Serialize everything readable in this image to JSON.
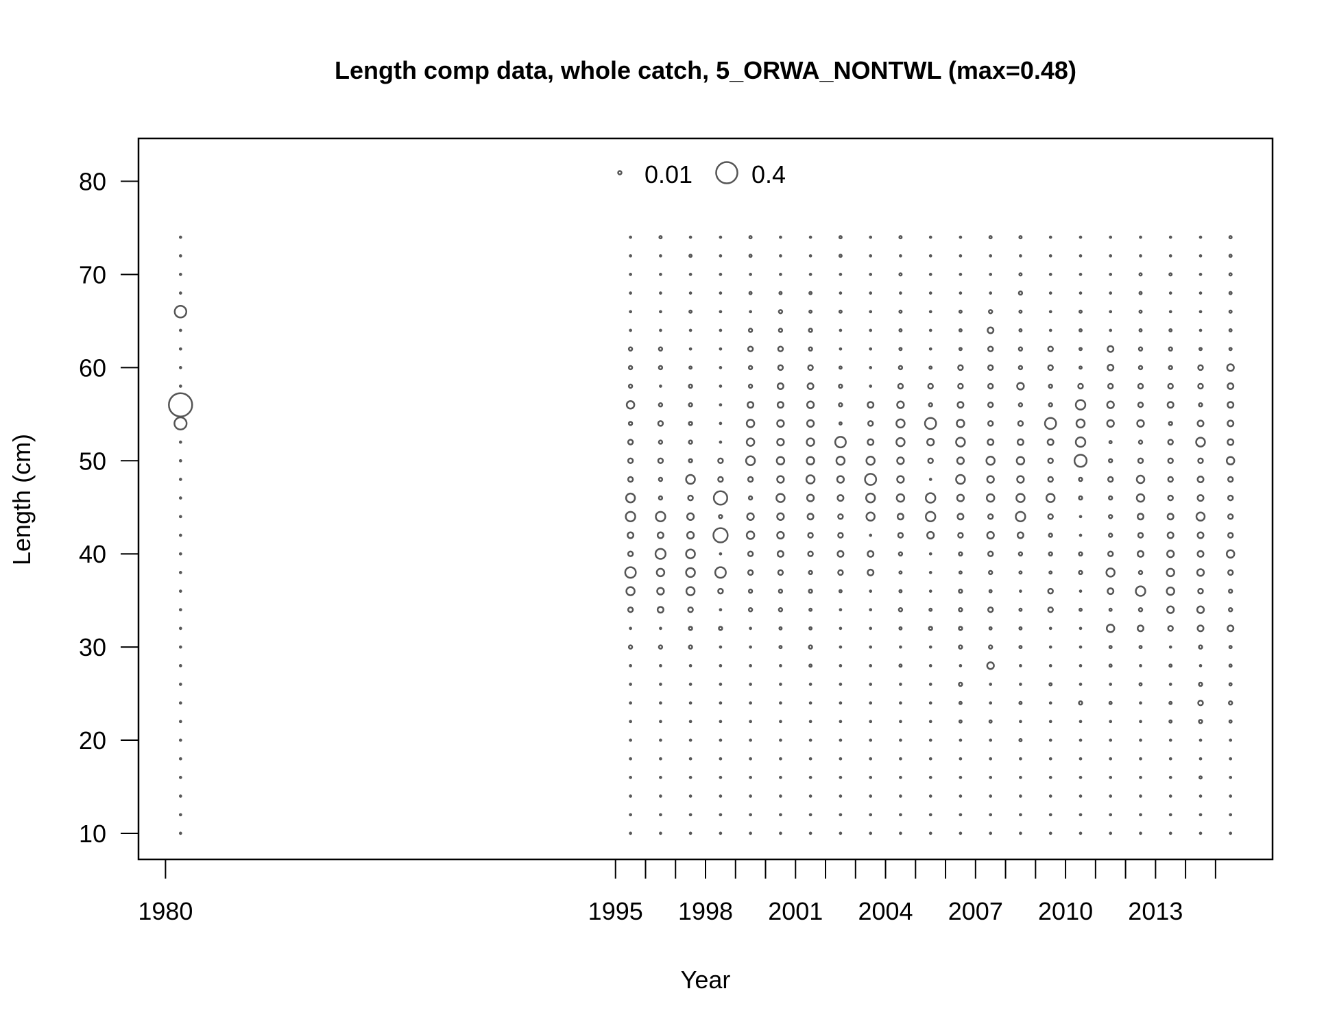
{
  "chart_data": {
    "type": "scatter",
    "subtype": "bubble",
    "title": "Length comp data, whole catch, 5_ORWA_NONTWL (max=0.48)",
    "xlabel": "Year",
    "ylabel": "Length (cm)",
    "xlim": [
      1979.1,
      2016.9
    ],
    "ylim": [
      7.2,
      84.6
    ],
    "x_ticks": [
      1980,
      1995,
      1996,
      1997,
      1998,
      1999,
      2000,
      2001,
      2002,
      2003,
      2004,
      2005,
      2006,
      2007,
      2008,
      2009,
      2010,
      2011,
      2012,
      2013,
      2014,
      2015
    ],
    "x_tick_labels": [
      {
        "value": 1980,
        "label": "1980"
      },
      {
        "value": 1995,
        "label": "1995"
      },
      {
        "value": 1998,
        "label": "1998"
      },
      {
        "value": 2001,
        "label": "2001"
      },
      {
        "value": 2004,
        "label": "2004"
      },
      {
        "value": 2007,
        "label": "2007"
      },
      {
        "value": 2010,
        "label": "2010"
      },
      {
        "value": 2013,
        "label": "2013"
      }
    ],
    "y_ticks": [
      {
        "value": 10,
        "label": "10"
      },
      {
        "value": 20,
        "label": "20"
      },
      {
        "value": 30,
        "label": "30"
      },
      {
        "value": 40,
        "label": "40"
      },
      {
        "value": 50,
        "label": "50"
      },
      {
        "value": 60,
        "label": "60"
      },
      {
        "value": 70,
        "label": "70"
      },
      {
        "value": 80,
        "label": "80"
      }
    ],
    "max_proportion": 0.48,
    "legend": {
      "position": "top-center",
      "entries": [
        {
          "value": 0.01,
          "label": "0.01"
        },
        {
          "value": 0.4,
          "label": "0.4"
        }
      ]
    },
    "bin_min": 10,
    "bin_max": 74,
    "bin_step": 2,
    "bubble_color": "#555555",
    "grid": false,
    "years": [
      {
        "year": 1980.5,
        "props": {
          "66": 0.12,
          "56": 0.48,
          "54": 0.13
        }
      },
      {
        "year": 1995.5,
        "props": {
          "34": 0.02,
          "36": 0.06,
          "38": 0.1,
          "40": 0.02,
          "42": 0.03,
          "44": 0.08,
          "46": 0.07,
          "48": 0.02,
          "50": 0.02,
          "52": 0.02,
          "54": 0.01,
          "56": 0.05,
          "58": 0.01,
          "60": 0.01,
          "62": 0.01,
          "30": 0.01
        }
      },
      {
        "year": 1996.5,
        "props": {
          "30": 0.01,
          "34": 0.03,
          "36": 0.04,
          "38": 0.05,
          "40": 0.09,
          "42": 0.03,
          "44": 0.08,
          "46": 0.01,
          "48": 0.01,
          "50": 0.02,
          "52": 0.01,
          "54": 0.02,
          "56": 0.01,
          "60": 0.01,
          "62": 0.01,
          "74": 0.005
        }
      },
      {
        "year": 1997.5,
        "props": {
          "30": 0.01,
          "32": 0.01,
          "34": 0.02,
          "36": 0.06,
          "38": 0.07,
          "40": 0.07,
          "42": 0.04,
          "44": 0.04,
          "46": 0.02,
          "48": 0.07,
          "50": 0.01,
          "52": 0.01,
          "54": 0.01,
          "56": 0.01,
          "58": 0.01,
          "60": 0.005,
          "66": 0.005,
          "72": 0.005
        }
      },
      {
        "year": 1998.5,
        "props": {
          "32": 0.01,
          "36": 0.02,
          "38": 0.1,
          "42": 0.18,
          "44": 0.01,
          "46": 0.16,
          "48": 0.02,
          "50": 0.02
        }
      },
      {
        "year": 1999.5,
        "props": {
          "34": 0.01,
          "36": 0.01,
          "38": 0.02,
          "40": 0.02,
          "42": 0.05,
          "44": 0.04,
          "46": 0.01,
          "48": 0.02,
          "50": 0.07,
          "52": 0.05,
          "54": 0.05,
          "56": 0.03,
          "58": 0.01,
          "60": 0.01,
          "62": 0.02,
          "64": 0.01,
          "68": 0.005,
          "72": 0.005,
          "74": 0.005
        }
      },
      {
        "year": 2000.5,
        "props": {
          "30": 0.005,
          "32": 0.005,
          "34": 0.01,
          "36": 0.01,
          "38": 0.02,
          "40": 0.03,
          "42": 0.04,
          "44": 0.04,
          "46": 0.06,
          "48": 0.04,
          "50": 0.05,
          "52": 0.04,
          "54": 0.04,
          "56": 0.03,
          "58": 0.03,
          "60": 0.02,
          "62": 0.02,
          "64": 0.01,
          "66": 0.01,
          "68": 0.005
        }
      },
      {
        "year": 2001.5,
        "props": {
          "28": 0.005,
          "30": 0.01,
          "32": 0.005,
          "34": 0.005,
          "36": 0.01,
          "38": 0.01,
          "40": 0.02,
          "42": 0.02,
          "44": 0.03,
          "46": 0.04,
          "48": 0.06,
          "50": 0.05,
          "52": 0.05,
          "54": 0.04,
          "56": 0.04,
          "58": 0.03,
          "60": 0.02,
          "62": 0.01,
          "64": 0.01,
          "66": 0.005,
          "68": 0.005
        }
      },
      {
        "year": 2002.5,
        "props": {
          "36": 0.005,
          "38": 0.02,
          "40": 0.03,
          "42": 0.02,
          "44": 0.02,
          "46": 0.03,
          "48": 0.04,
          "50": 0.06,
          "52": 0.1,
          "54": 0.005,
          "56": 0.01,
          "58": 0.01,
          "60": 0.005,
          "66": 0.005,
          "72": 0.005,
          "74": 0.005
        }
      },
      {
        "year": 2003.5,
        "props": {
          "38": 0.03,
          "40": 0.03,
          "44": 0.06,
          "46": 0.07,
          "48": 0.11,
          "50": 0.06,
          "52": 0.03,
          "54": 0.02,
          "56": 0.03
        }
      },
      {
        "year": 2004.5,
        "props": {
          "28": 0.005,
          "32": 0.005,
          "34": 0.01,
          "36": 0.005,
          "38": 0.005,
          "40": 0.01,
          "42": 0.02,
          "44": 0.03,
          "46": 0.05,
          "48": 0.04,
          "50": 0.04,
          "52": 0.06,
          "54": 0.06,
          "56": 0.04,
          "58": 0.02,
          "60": 0.01,
          "62": 0.005,
          "64": 0.005,
          "66": 0.005,
          "70": 0.005,
          "74": 0.005
        }
      },
      {
        "year": 2005.5,
        "props": {
          "32": 0.01,
          "34": 0.005,
          "42": 0.04,
          "44": 0.08,
          "46": 0.08,
          "50": 0.02,
          "52": 0.04,
          "54": 0.11,
          "56": 0.01,
          "58": 0.02,
          "60": 0.005
        }
      },
      {
        "year": 2006.5,
        "props": {
          "22": 0.005,
          "24": 0.005,
          "26": 0.01,
          "30": 0.01,
          "32": 0.01,
          "34": 0.01,
          "36": 0.01,
          "38": 0.005,
          "40": 0.01,
          "42": 0.02,
          "44": 0.03,
          "46": 0.04,
          "48": 0.07,
          "50": 0.04,
          "52": 0.07,
          "54": 0.05,
          "56": 0.03,
          "58": 0.02,
          "60": 0.02,
          "62": 0.005,
          "64": 0.005,
          "66": 0.005
        }
      },
      {
        "year": 2007.5,
        "props": {
          "22": 0.005,
          "28": 0.04,
          "30": 0.01,
          "32": 0.005,
          "34": 0.02,
          "36": 0.005,
          "38": 0.01,
          "40": 0.02,
          "42": 0.04,
          "44": 0.02,
          "46": 0.05,
          "48": 0.04,
          "50": 0.06,
          "52": 0.03,
          "54": 0.02,
          "56": 0.02,
          "58": 0.02,
          "60": 0.02,
          "62": 0.02,
          "64": 0.03,
          "66": 0.01,
          "74": 0.005
        }
      },
      {
        "year": 2008.5,
        "props": {
          "20": 0.005,
          "24": 0.005,
          "30": 0.005,
          "32": 0.005,
          "34": 0.005,
          "38": 0.005,
          "40": 0.01,
          "42": 0.03,
          "44": 0.08,
          "46": 0.06,
          "48": 0.04,
          "50": 0.05,
          "52": 0.03,
          "54": 0.02,
          "56": 0.01,
          "58": 0.04,
          "60": 0.01,
          "62": 0.01,
          "64": 0.005,
          "66": 0.005,
          "68": 0.01,
          "70": 0.005,
          "74": 0.005
        }
      },
      {
        "year": 2009.5,
        "props": {
          "26": 0.005,
          "34": 0.02,
          "36": 0.02,
          "38": 0.005,
          "40": 0.01,
          "42": 0.01,
          "44": 0.02,
          "46": 0.06,
          "48": 0.02,
          "50": 0.02,
          "52": 0.03,
          "54": 0.11,
          "56": 0.01,
          "58": 0.01,
          "60": 0.02,
          "62": 0.02
        }
      },
      {
        "year": 2010.5,
        "props": {
          "24": 0.01,
          "34": 0.005,
          "38": 0.01,
          "40": 0.01,
          "46": 0.01,
          "48": 0.01,
          "50": 0.13,
          "52": 0.08,
          "54": 0.06,
          "56": 0.08,
          "58": 0.02,
          "60": 0.005,
          "62": 0.005,
          "64": 0.005,
          "66": 0.005
        }
      },
      {
        "year": 2011.5,
        "props": {
          "24": 0.005,
          "28": 0.005,
          "30": 0.005,
          "32": 0.05,
          "34": 0.005,
          "36": 0.03,
          "38": 0.06,
          "40": 0.02,
          "42": 0.01,
          "44": 0.01,
          "46": 0.01,
          "48": 0.02,
          "50": 0.01,
          "52": 0.005,
          "54": 0.04,
          "56": 0.04,
          "58": 0.02,
          "60": 0.03,
          "62": 0.03
        }
      },
      {
        "year": 2012.5,
        "props": {
          "26": 0.005,
          "30": 0.005,
          "32": 0.03,
          "34": 0.01,
          "36": 0.08,
          "38": 0.01,
          "40": 0.03,
          "42": 0.02,
          "44": 0.03,
          "46": 0.05,
          "48": 0.05,
          "50": 0.02,
          "52": 0.01,
          "54": 0.04,
          "56": 0.02,
          "58": 0.02,
          "60": 0.01,
          "62": 0.01,
          "64": 0.005,
          "66": 0.005,
          "68": 0.005,
          "70": 0.005
        }
      },
      {
        "year": 2013.5,
        "props": {
          "22": 0.005,
          "24": 0.005,
          "28": 0.005,
          "32": 0.02,
          "34": 0.04,
          "36": 0.05,
          "38": 0.05,
          "40": 0.04,
          "42": 0.03,
          "44": 0.03,
          "46": 0.02,
          "48": 0.02,
          "50": 0.02,
          "52": 0.02,
          "54": 0.01,
          "56": 0.03,
          "58": 0.02,
          "60": 0.01,
          "62": 0.01,
          "64": 0.005,
          "70": 0.005
        }
      },
      {
        "year": 2014.5,
        "props": {
          "16": 0.005,
          "22": 0.01,
          "24": 0.02,
          "26": 0.01,
          "30": 0.01,
          "32": 0.03,
          "34": 0.04,
          "36": 0.02,
          "38": 0.04,
          "40": 0.03,
          "42": 0.03,
          "44": 0.06,
          "46": 0.03,
          "48": 0.03,
          "50": 0.02,
          "52": 0.07,
          "54": 0.03,
          "56": 0.01,
          "58": 0.02,
          "60": 0.02,
          "62": 0.005
        }
      },
      {
        "year": 2015.5,
        "props": {
          "22": 0.005,
          "24": 0.01,
          "26": 0.005,
          "28": 0.005,
          "30": 0.005,
          "32": 0.03,
          "34": 0.01,
          "36": 0.01,
          "38": 0.02,
          "40": 0.05,
          "42": 0.02,
          "44": 0.02,
          "46": 0.02,
          "48": 0.02,
          "50": 0.05,
          "52": 0.03,
          "54": 0.03,
          "56": 0.03,
          "58": 0.03,
          "60": 0.04,
          "62": 0.005,
          "64": 0.005,
          "66": 0.005,
          "68": 0.005,
          "70": 0.005,
          "72": 0.005,
          "74": 0.005
        }
      }
    ]
  }
}
